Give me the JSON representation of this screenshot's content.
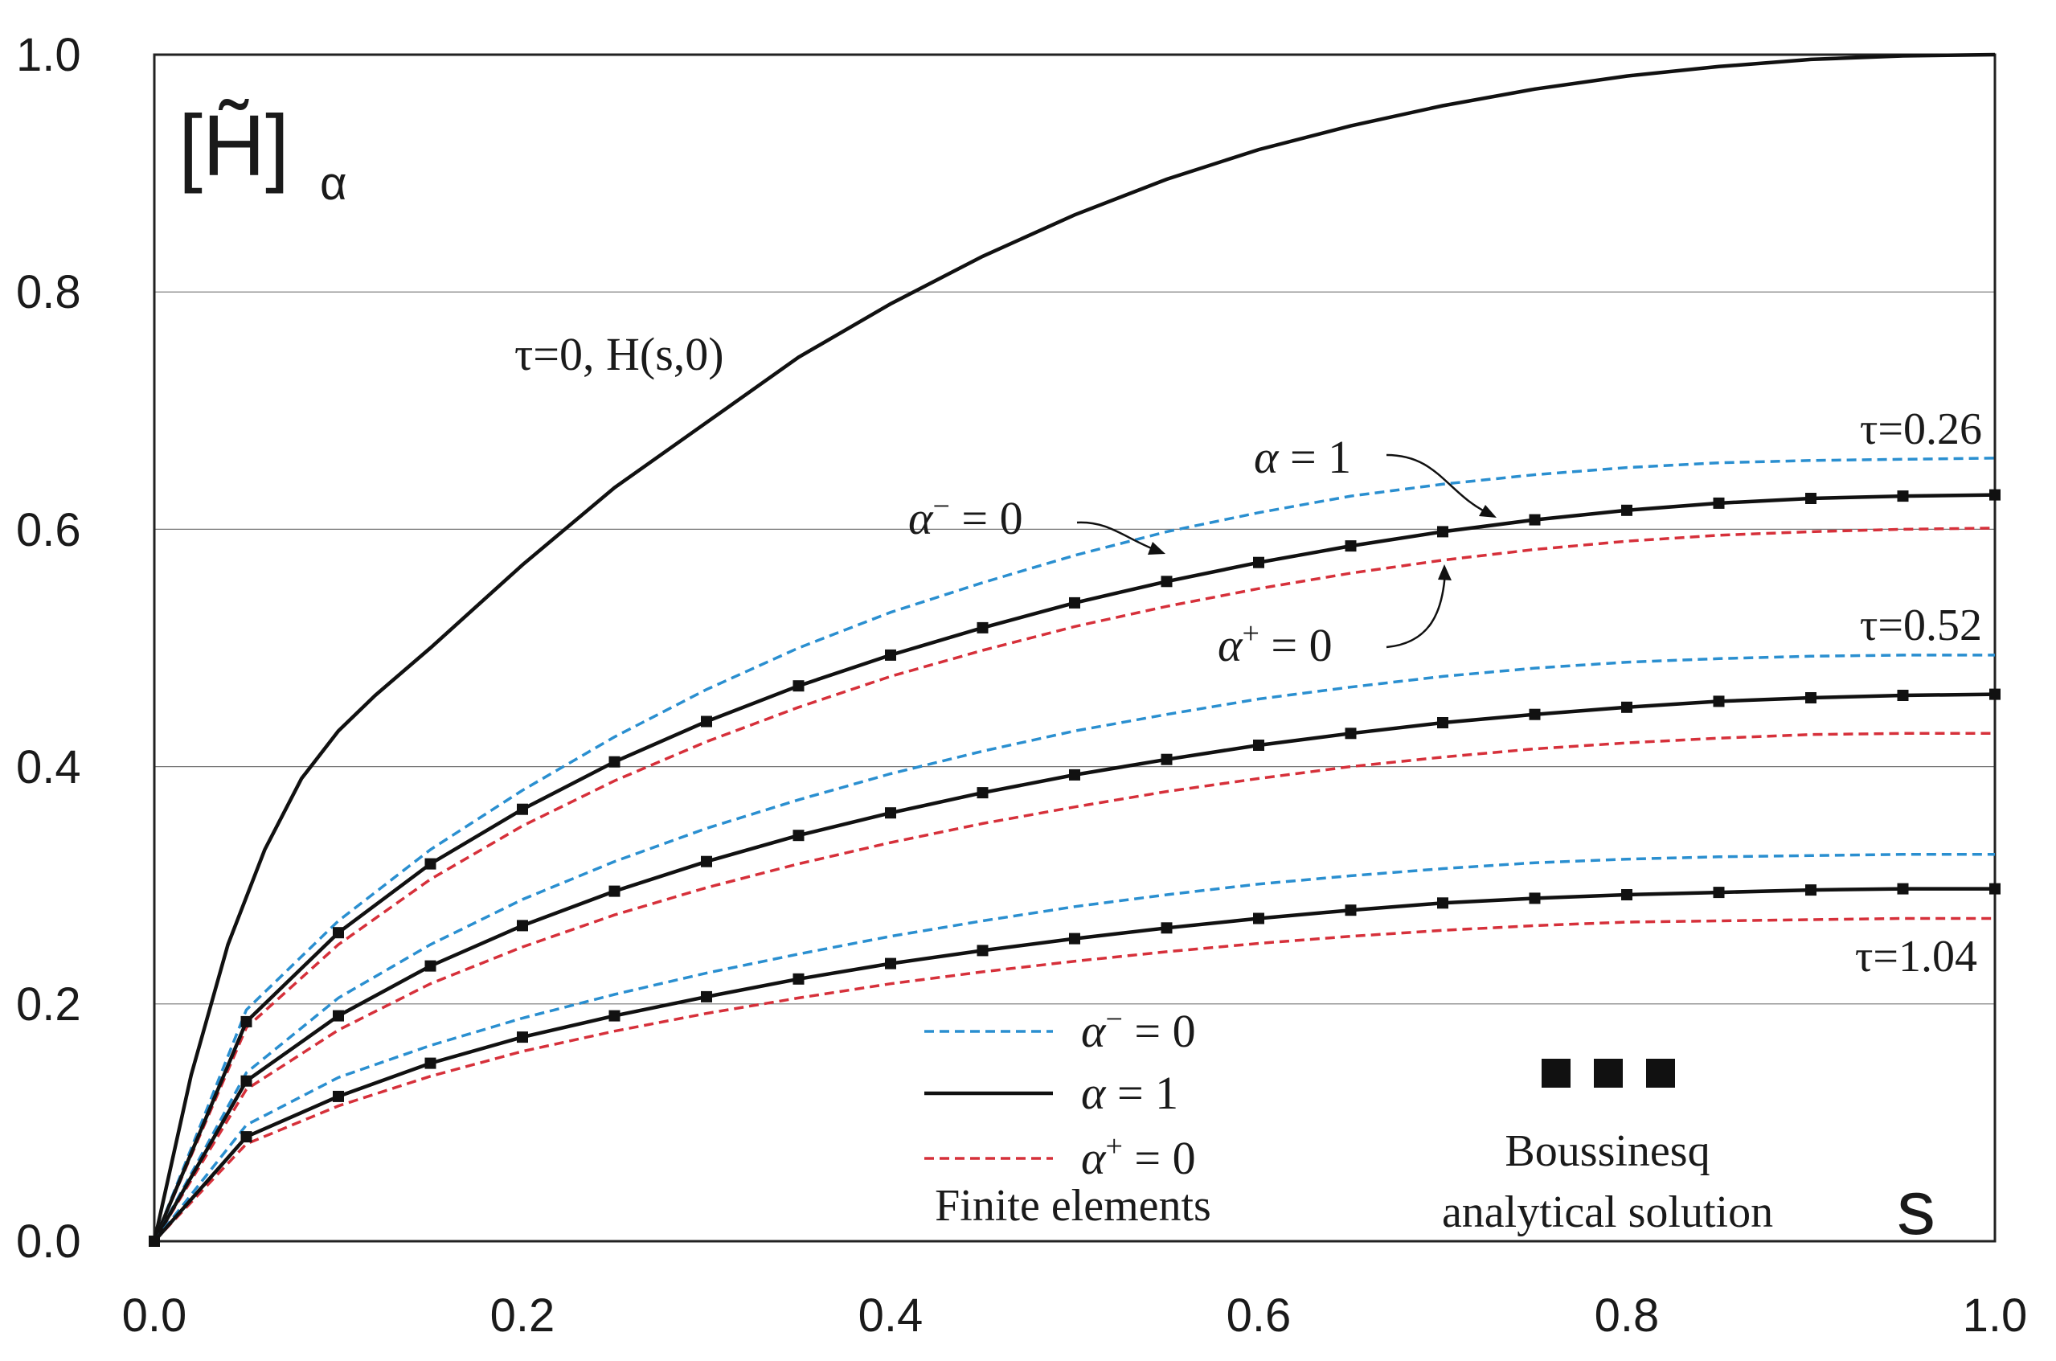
{
  "chart_data": {
    "type": "line",
    "xlabel": "s",
    "ylabel": {
      "main": "[H̃]",
      "sub": "α"
    },
    "xlim": [
      0,
      1.0
    ],
    "ylim": [
      0,
      1.0
    ],
    "xticks": [
      0.0,
      0.2,
      0.4,
      0.6,
      0.8,
      1.0
    ],
    "yticks": [
      0.0,
      0.2,
      0.4,
      0.6,
      0.8,
      1.0
    ],
    "xtick_labels": [
      "0.0",
      "0.2",
      "0.4",
      "0.6",
      "0.8",
      "1.0"
    ],
    "ytick_labels": [
      "0.0",
      "0.2",
      "0.4",
      "0.6",
      "0.8",
      "1.0"
    ],
    "grid": "horizontal",
    "colors": {
      "alpha_minus": "#2a8fd0",
      "alpha_one": "#111111",
      "alpha_plus": "#d6303a"
    },
    "initial_curve": {
      "label": "τ=0, H(s,0)",
      "x": [
        0,
        0.02,
        0.04,
        0.06,
        0.08,
        0.1,
        0.12,
        0.15,
        0.2,
        0.25,
        0.3,
        0.35,
        0.4,
        0.45,
        0.5,
        0.55,
        0.6,
        0.65,
        0.7,
        0.75,
        0.8,
        0.85,
        0.9,
        0.95,
        1.0
      ],
      "y": [
        0,
        0.14,
        0.25,
        0.33,
        0.39,
        0.43,
        0.46,
        0.5,
        0.57,
        0.635,
        0.69,
        0.745,
        0.79,
        0.83,
        0.865,
        0.895,
        0.92,
        0.94,
        0.957,
        0.971,
        0.982,
        0.99,
        0.996,
        0.999,
        1.0
      ]
    },
    "x": [
      0,
      0.05,
      0.1,
      0.15,
      0.2,
      0.25,
      0.3,
      0.35,
      0.4,
      0.45,
      0.5,
      0.55,
      0.6,
      0.65,
      0.7,
      0.75,
      0.8,
      0.85,
      0.9,
      0.95,
      1.0
    ],
    "groups": [
      {
        "tau_label": "τ=0.26",
        "alpha_minus": [
          0,
          0.195,
          0.27,
          0.33,
          0.38,
          0.425,
          0.465,
          0.5,
          0.53,
          0.555,
          0.578,
          0.598,
          0.614,
          0.628,
          0.638,
          0.646,
          0.652,
          0.656,
          0.658,
          0.659,
          0.66
        ],
        "alpha_one": [
          0,
          0.185,
          0.26,
          0.318,
          0.364,
          0.404,
          0.438,
          0.468,
          0.494,
          0.517,
          0.538,
          0.556,
          0.572,
          0.586,
          0.598,
          0.608,
          0.616,
          0.622,
          0.626,
          0.628,
          0.629
        ],
        "alpha_plus": [
          0,
          0.18,
          0.25,
          0.305,
          0.35,
          0.388,
          0.421,
          0.45,
          0.476,
          0.498,
          0.518,
          0.535,
          0.55,
          0.563,
          0.574,
          0.583,
          0.59,
          0.595,
          0.598,
          0.6,
          0.601
        ]
      },
      {
        "tau_label": "τ=0.52",
        "alpha_minus": [
          0,
          0.142,
          0.205,
          0.25,
          0.288,
          0.32,
          0.348,
          0.372,
          0.394,
          0.413,
          0.43,
          0.444,
          0.457,
          0.467,
          0.476,
          0.483,
          0.488,
          0.491,
          0.493,
          0.494,
          0.494
        ],
        "alpha_one": [
          0,
          0.135,
          0.19,
          0.232,
          0.266,
          0.295,
          0.32,
          0.342,
          0.361,
          0.378,
          0.393,
          0.406,
          0.418,
          0.428,
          0.437,
          0.444,
          0.45,
          0.455,
          0.458,
          0.46,
          0.461
        ],
        "alpha_plus": [
          0,
          0.128,
          0.178,
          0.217,
          0.248,
          0.275,
          0.298,
          0.318,
          0.336,
          0.352,
          0.366,
          0.379,
          0.39,
          0.4,
          0.408,
          0.415,
          0.42,
          0.424,
          0.427,
          0.428,
          0.428
        ]
      },
      {
        "tau_label": "τ=1.04",
        "alpha_minus": [
          0,
          0.098,
          0.138,
          0.165,
          0.188,
          0.208,
          0.226,
          0.242,
          0.257,
          0.27,
          0.282,
          0.292,
          0.301,
          0.308,
          0.314,
          0.319,
          0.322,
          0.324,
          0.325,
          0.326,
          0.326
        ],
        "alpha_one": [
          0,
          0.088,
          0.122,
          0.15,
          0.172,
          0.19,
          0.206,
          0.221,
          0.234,
          0.245,
          0.255,
          0.264,
          0.272,
          0.279,
          0.285,
          0.289,
          0.292,
          0.294,
          0.296,
          0.297,
          0.297
        ],
        "alpha_plus": [
          0,
          0.082,
          0.114,
          0.139,
          0.16,
          0.177,
          0.192,
          0.205,
          0.217,
          0.227,
          0.236,
          0.244,
          0.251,
          0.257,
          0.262,
          0.266,
          0.269,
          0.27,
          0.271,
          0.272,
          0.272
        ]
      }
    ],
    "annotations": {
      "alpha_one": {
        "italic": "α",
        "rest": " = 1"
      },
      "alpha_minus": {
        "italic": "α",
        "sup": "−",
        "rest": " = 0"
      },
      "alpha_plus": {
        "italic": "α",
        "sup": "+",
        "rest": " = 0"
      }
    },
    "legend": {
      "entries": [
        {
          "italic": "α",
          "sup": "−",
          "rest": " = 0"
        },
        {
          "italic": "α",
          "sup": "",
          "rest": " = 1"
        },
        {
          "italic": "α",
          "sup": "+",
          "rest": " = 0"
        }
      ],
      "caption": "Finite elements",
      "marker_caption_line1": "Boussinesq",
      "marker_caption_line2": "analytical solution",
      "position": "bottom-right"
    }
  }
}
